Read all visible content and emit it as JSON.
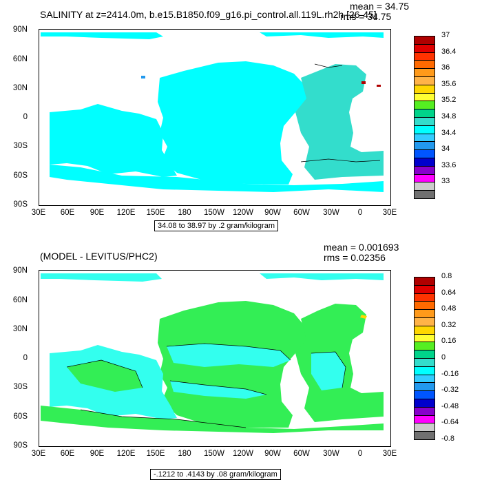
{
  "panels": [
    {
      "title": "SALINITY at z=2414.0m, b.e15.B1850.f09_g16.pi_control.all.119L.rh2h [26-45]",
      "mean_text": "mean = 34.75",
      "rms_text": "rms = 34.75",
      "lat_labels": [
        "90N",
        "60N",
        "30N",
        "0",
        "30S",
        "60S",
        "90S"
      ],
      "lon_labels": [
        "30E",
        "60E",
        "90E",
        "120E",
        "150E",
        "180",
        "150W",
        "120W",
        "90W",
        "60W",
        "30W",
        "0",
        "30E"
      ],
      "contour_info": "34.08 to 38.97 by .2 gram/kilogram",
      "colorbar": {
        "colors": [
          "#b00000",
          "#e00000",
          "#ff3300",
          "#ff6a00",
          "#ff9a1a",
          "#ffb347",
          "#ffd700",
          "#ffff33",
          "#55ee22",
          "#00d48a",
          "#33ddcc",
          "#00ffff",
          "#33ccff",
          "#2299ee",
          "#0055ff",
          "#0000cc",
          "#8800cc",
          "#ff00ff",
          "#cccccc",
          "#707070"
        ],
        "labels": [
          "37",
          "36.4",
          "36",
          "35.6",
          "35.2",
          "34.8",
          "34.4",
          "34",
          "33.6",
          "33"
        ]
      }
    },
    {
      "title": "(MODEL - LEVITUS/PHC2)",
      "mean_text": "mean = 0.001693",
      "rms_text": "rms = 0.02356",
      "lat_labels": [
        "90N",
        "60N",
        "30N",
        "0",
        "30S",
        "60S",
        "90S"
      ],
      "lon_labels": [
        "30E",
        "60E",
        "90E",
        "120E",
        "150E",
        "180",
        "150W",
        "120W",
        "90W",
        "60W",
        "30W",
        "0",
        "30E"
      ],
      "contour_info": "-.1212 to .4143 by .08 gram/kilogram",
      "colorbar": {
        "colors": [
          "#b00000",
          "#e00000",
          "#ff3300",
          "#ff6a00",
          "#ff9a1a",
          "#ffb347",
          "#ffd700",
          "#ffff33",
          "#55ee22",
          "#00d48a",
          "#33ddcc",
          "#00ffff",
          "#33ccff",
          "#2299ee",
          "#0055ff",
          "#0000cc",
          "#8800cc",
          "#ff00ff",
          "#cccccc",
          "#707070"
        ],
        "labels": [
          "0.8",
          "0.64",
          "0.48",
          "0.32",
          "0.16",
          "0",
          "-0.16",
          "-0.32",
          "-0.48",
          "-0.64",
          "-0.8"
        ]
      }
    }
  ],
  "colors": {
    "ocean_top": "#00ffff",
    "ocean_top_atlantic": "#33ddcc",
    "ocean_bottom_main": "#33ee55",
    "ocean_bottom_cyan": "#33ffee",
    "land": "#ffffff"
  }
}
